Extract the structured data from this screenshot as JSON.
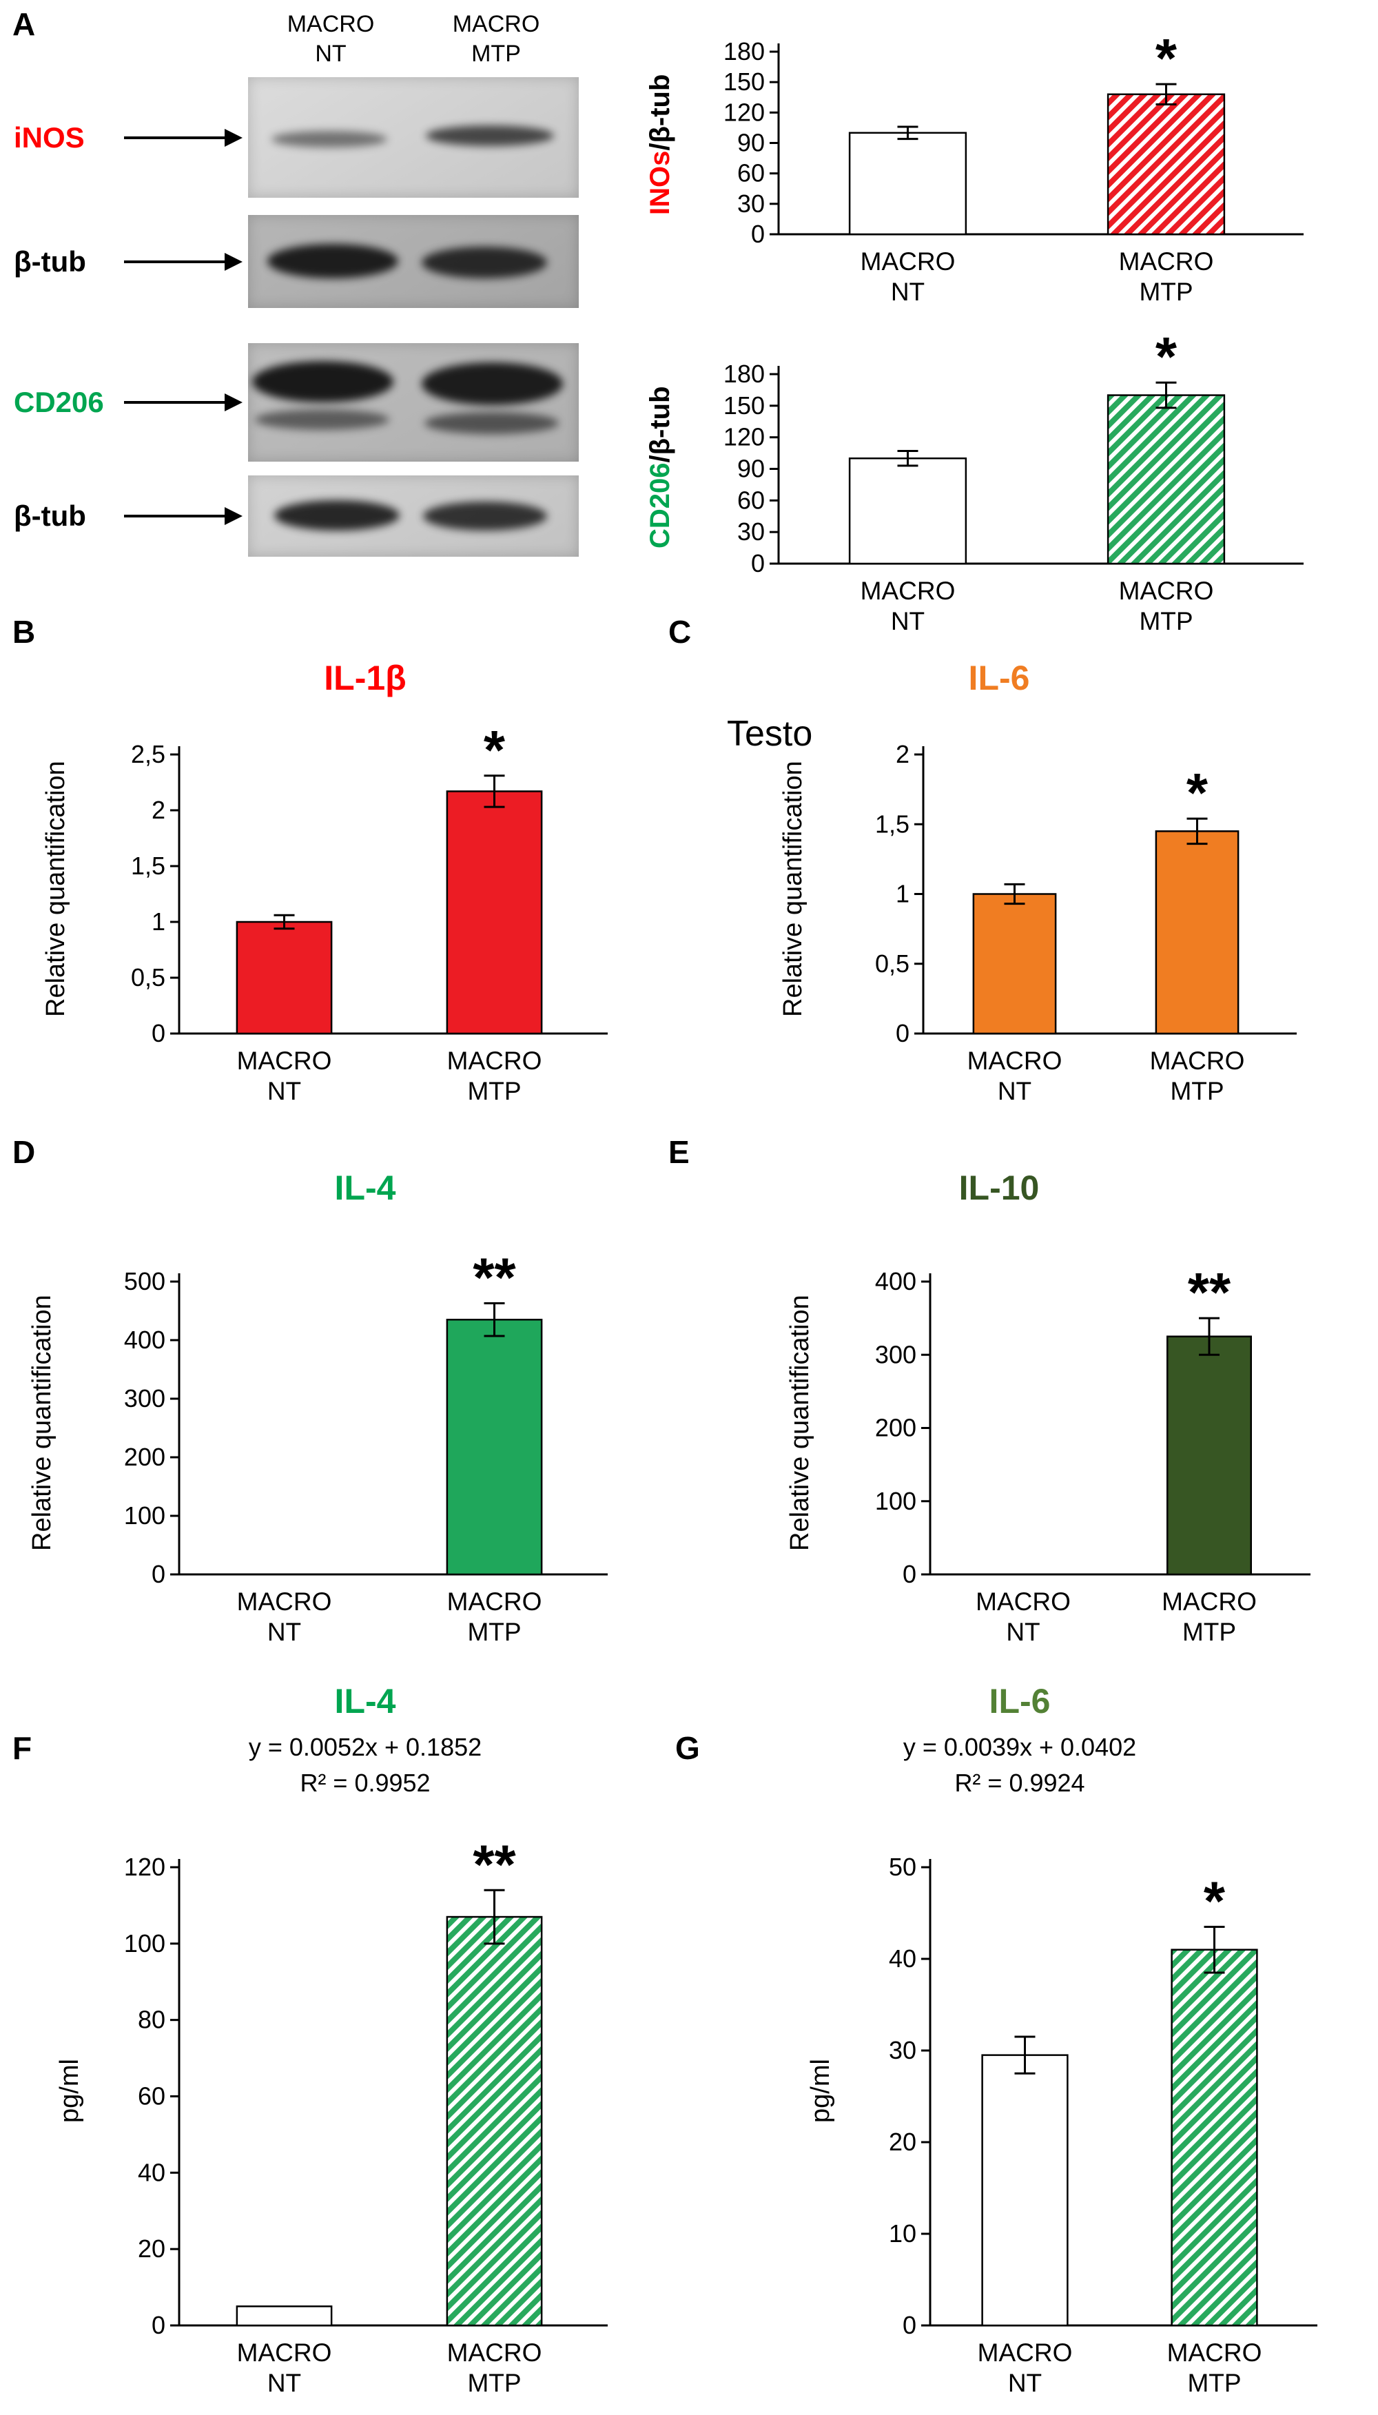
{
  "figure": {
    "panel_letters": {
      "a": "A",
      "b": "B",
      "c": "C",
      "d": "D",
      "e": "E",
      "f": "F",
      "g": "G"
    }
  },
  "panel_a": {
    "lane_headers": [
      [
        "MACRO",
        "NT"
      ],
      [
        "MACRO",
        "MTP"
      ]
    ],
    "blots": [
      {
        "label": "iNOS",
        "label_color": "#FF0000"
      },
      {
        "label": "β-tub",
        "label_color": "#000000"
      },
      {
        "label": "CD206",
        "label_color": "#00A550"
      },
      {
        "label": "β-tub",
        "label_color": "#000000"
      }
    ]
  },
  "chart_data": [
    {
      "id": "inos-beta-tub-ratio",
      "panel": "A",
      "type": "bar",
      "title": "",
      "title_color": "#000000",
      "ylabel_segments": [
        {
          "text": "INOs",
          "color": "#FF0000"
        },
        {
          "text": "/β-tub",
          "color": "#000000"
        }
      ],
      "categories": [
        [
          "MACRO",
          "NT"
        ],
        [
          "MACRO",
          "MTP"
        ]
      ],
      "values": [
        100,
        138
      ],
      "errors": [
        6,
        10
      ],
      "ylim": [
        0,
        180
      ],
      "yticks": [
        0,
        30,
        60,
        90,
        120,
        150,
        180
      ],
      "ytick_labels": [
        "0",
        "30",
        "60",
        "90",
        "120",
        "150",
        "180"
      ],
      "bars": [
        {
          "fill": "#FFFFFF"
        },
        {
          "hatch": "#EC1C24"
        }
      ],
      "significance": [
        "",
        "*"
      ],
      "grid": false,
      "legend": "none"
    },
    {
      "id": "cd206-beta-tub-ratio",
      "panel": "A",
      "type": "bar",
      "title": "",
      "title_color": "#000000",
      "ylabel_segments": [
        {
          "text": "CD206",
          "color": "#00A550"
        },
        {
          "text": "/β-tub",
          "color": "#000000"
        }
      ],
      "categories": [
        [
          "MACRO",
          "NT"
        ],
        [
          "MACRO",
          "MTP"
        ]
      ],
      "values": [
        100,
        160
      ],
      "errors": [
        7,
        12
      ],
      "ylim": [
        0,
        180
      ],
      "yticks": [
        0,
        30,
        60,
        90,
        120,
        150,
        180
      ],
      "ytick_labels": [
        "0",
        "30",
        "60",
        "90",
        "120",
        "150",
        "180"
      ],
      "bars": [
        {
          "fill": "#FFFFFF"
        },
        {
          "hatch": "#28A95D"
        }
      ],
      "significance": [
        "",
        "*"
      ],
      "grid": false,
      "legend": "none"
    },
    {
      "id": "il1b-relative-quantification",
      "panel": "B",
      "type": "bar",
      "title": "IL-1β",
      "title_color": "#FF0000",
      "ylabel": "Relative quantification",
      "categories": [
        [
          "MACRO",
          "NT"
        ],
        [
          "MACRO",
          "MTP"
        ]
      ],
      "values": [
        1,
        2.17
      ],
      "errors": [
        0.06,
        0.14
      ],
      "ylim": [
        0,
        2.5
      ],
      "yticks": [
        0,
        0.5,
        1,
        1.5,
        2,
        2.5
      ],
      "ytick_labels": [
        "0",
        "0,5",
        "1",
        "1,5",
        "2",
        "2,5"
      ],
      "bars": [
        {
          "fill": "#EC1C24"
        },
        {
          "fill": "#EC1C24"
        }
      ],
      "significance": [
        "",
        "*"
      ],
      "grid": false,
      "legend": "none"
    },
    {
      "id": "il6-relative-quantification",
      "panel": "C",
      "type": "bar",
      "title": "IL-6",
      "title_color": "#F07D22",
      "ylabel": "Relative quantification",
      "stray_label": "Testo",
      "categories": [
        [
          "MACRO",
          "NT"
        ],
        [
          "MACRO",
          "MTP"
        ]
      ],
      "values": [
        1,
        1.45
      ],
      "errors": [
        0.07,
        0.09
      ],
      "ylim": [
        0,
        2
      ],
      "yticks": [
        0,
        0.5,
        1,
        1.5,
        2
      ],
      "ytick_labels": [
        "0",
        "0,5",
        "1",
        "1,5",
        "2"
      ],
      "bars": [
        {
          "fill": "#F07D22"
        },
        {
          "fill": "#F07D22"
        }
      ],
      "significance": [
        "",
        "*"
      ],
      "grid": false,
      "legend": "none"
    },
    {
      "id": "il4-relative-quantification",
      "panel": "D",
      "type": "bar",
      "title": "IL-4",
      "title_color": "#00A550",
      "ylabel": "Relative quantification",
      "categories": [
        [
          "MACRO",
          "NT"
        ],
        [
          "MACRO",
          "MTP"
        ]
      ],
      "values": [
        0,
        435
      ],
      "errors": [
        0,
        28
      ],
      "ylim": [
        0,
        500
      ],
      "yticks": [
        0,
        100,
        200,
        300,
        400,
        500
      ],
      "ytick_labels": [
        "0",
        "100",
        "200",
        "300",
        "400",
        "500"
      ],
      "bars": [
        {
          "fill": "#1FA75B"
        },
        {
          "fill": "#1FA75B"
        }
      ],
      "significance": [
        "",
        "**"
      ],
      "grid": false,
      "legend": "none"
    },
    {
      "id": "il10-relative-quantification",
      "panel": "E",
      "type": "bar",
      "title": "IL-10",
      "title_color": "#375623",
      "ylabel": "Relative quantification",
      "categories": [
        [
          "MACRO",
          "NT"
        ],
        [
          "MACRO",
          "MTP"
        ]
      ],
      "values": [
        0,
        325
      ],
      "errors": [
        0,
        25
      ],
      "ylim": [
        0,
        400
      ],
      "yticks": [
        0,
        100,
        200,
        300,
        400
      ],
      "ytick_labels": [
        "0",
        "100",
        "200",
        "300",
        "400"
      ],
      "bars": [
        {
          "fill": "#375623"
        },
        {
          "fill": "#375623"
        }
      ],
      "significance": [
        "",
        "**"
      ],
      "grid": false,
      "legend": "none"
    },
    {
      "id": "il4-elisa-pg-ml",
      "panel": "F",
      "type": "bar",
      "title": "IL-4",
      "title_color": "#00A550",
      "equation": [
        "y = 0.0052x + 0.1852",
        "R² = 0.9952"
      ],
      "ylabel": "pg/ml",
      "categories": [
        [
          "MACRO",
          "NT"
        ],
        [
          "MACRO",
          "MTP"
        ]
      ],
      "values": [
        5,
        107
      ],
      "errors": [
        0,
        7
      ],
      "ylim": [
        0,
        120
      ],
      "yticks": [
        0,
        20,
        40,
        60,
        80,
        100,
        120
      ],
      "ytick_labels": [
        "0",
        "20",
        "40",
        "60",
        "80",
        "100",
        "120"
      ],
      "bars": [
        {
          "fill": "#FFFFFF"
        },
        {
          "hatch": "#28A95D"
        }
      ],
      "significance": [
        "",
        "**"
      ],
      "grid": false,
      "legend": "none"
    },
    {
      "id": "il6-elisa-pg-ml",
      "panel": "G",
      "type": "bar",
      "title": "IL-6",
      "title_color": "#538135",
      "equation": [
        "y = 0.0039x + 0.0402",
        "R² = 0.9924"
      ],
      "ylabel": "pg/ml",
      "categories": [
        [
          "MACRO",
          "NT"
        ],
        [
          "MACRO",
          "MTP"
        ]
      ],
      "values": [
        29.5,
        41
      ],
      "errors": [
        2,
        2.5
      ],
      "ylim": [
        0,
        50
      ],
      "yticks": [
        0,
        10,
        20,
        30,
        40,
        50
      ],
      "ytick_labels": [
        "0",
        "10",
        "20",
        "30",
        "40",
        "50"
      ],
      "bars": [
        {
          "fill": "#FFFFFF"
        },
        {
          "hatch": "#28A95D"
        }
      ],
      "significance": [
        "",
        "*"
      ],
      "grid": false,
      "legend": "none"
    }
  ]
}
